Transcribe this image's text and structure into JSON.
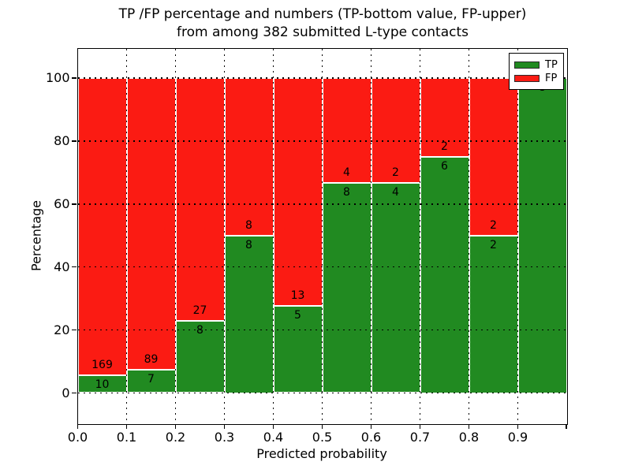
{
  "title": {
    "line1": "TP /FP percentage and numbers (TP-bottom value, FP-upper)",
    "line2": "from among 382 submitted L-type contacts"
  },
  "axes": {
    "xlabel": "Predicted probability",
    "ylabel": "Percentage",
    "x_tick_labels": [
      "0.0",
      "0.1",
      "0.2",
      "0.3",
      "0.4",
      "0.5",
      "0.6",
      "0.7",
      "0.8",
      "0.9"
    ],
    "y_tick_labels": [
      "0",
      "20",
      "40",
      "60",
      "80",
      "100"
    ],
    "y_tick_values": [
      0,
      20,
      40,
      60,
      80,
      100
    ]
  },
  "legend": {
    "items": [
      {
        "label": "TP",
        "color": "#218a21"
      },
      {
        "label": "FP",
        "color": "#fb1b13"
      }
    ],
    "position": "upper right"
  },
  "chart_data": {
    "type": "bar",
    "stacked": true,
    "normalized": "percent",
    "title": "TP /FP percentage and numbers (TP-bottom value, FP-upper) from among 382 submitted L-type contacts",
    "xlabel": "Predicted probability",
    "ylabel": "Percentage",
    "xlim": [
      0.0,
      1.0
    ],
    "ylim": [
      -10,
      109
    ],
    "bin_width": 0.1,
    "grid": "dotted",
    "legend_position": "upper right",
    "total_contacts": 382,
    "categories": [
      "0.0-0.1",
      "0.1-0.2",
      "0.2-0.3",
      "0.3-0.4",
      "0.4-0.5",
      "0.5-0.6",
      "0.6-0.7",
      "0.7-0.8",
      "0.8-0.9",
      "0.9-1.0"
    ],
    "series": [
      {
        "name": "TP",
        "color": "#218a21",
        "counts": [
          10,
          7,
          8,
          8,
          5,
          8,
          4,
          6,
          2,
          8
        ],
        "percent": [
          5.59,
          7.29,
          22.86,
          50.0,
          27.78,
          66.67,
          66.67,
          75.0,
          50.0,
          100.0
        ]
      },
      {
        "name": "FP",
        "color": "#fb1b13",
        "counts": [
          169,
          89,
          27,
          8,
          13,
          4,
          2,
          2,
          2,
          0
        ],
        "percent": [
          94.41,
          92.71,
          77.14,
          50.0,
          72.22,
          33.33,
          33.33,
          25.0,
          50.0,
          0.0
        ]
      }
    ]
  }
}
